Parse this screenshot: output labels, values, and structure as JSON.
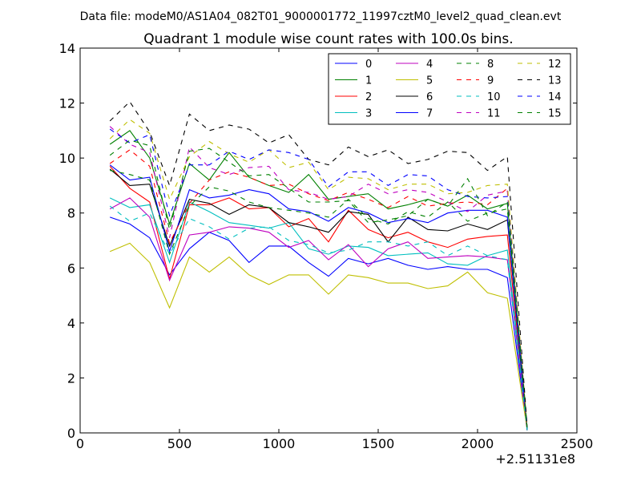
{
  "header": {
    "data_file_line": "Data file: modeM0/AS1A04_082T01_9000001772_11997cztM0_level2_quad_clean.evt"
  },
  "chart_data": {
    "type": "line",
    "title": "Quadrant 1 module wise count rates with 100.0s bins.",
    "xlabel": "",
    "ylabel": "",
    "xlim": [
      0,
      2500
    ],
    "ylim": [
      0,
      14
    ],
    "x_offset_label": "+2.51131e8",
    "x_ticks": [
      0,
      500,
      1000,
      1500,
      2000,
      2500
    ],
    "x_tick_labels": [
      "0",
      "500",
      "1000",
      "1500",
      "2000",
      "2500"
    ],
    "y_ticks": [
      0,
      2,
      4,
      6,
      8,
      10,
      12,
      14
    ],
    "y_tick_labels": [
      "0",
      "2",
      "4",
      "6",
      "8",
      "10",
      "12",
      "14"
    ],
    "grid": false,
    "legend_position": "top-right",
    "x": [
      150,
      250,
      350,
      450,
      550,
      650,
      750,
      850,
      950,
      1050,
      1150,
      1250,
      1350,
      1450,
      1550,
      1650,
      1750,
      1850,
      1950,
      2050,
      2150,
      2250
    ],
    "series": [
      {
        "name": "0",
        "color": "#0000ff",
        "dash": "solid",
        "values": [
          7.85,
          7.6,
          7.1,
          5.75,
          6.7,
          7.3,
          7.0,
          6.2,
          6.8,
          6.8,
          6.2,
          5.7,
          6.35,
          6.15,
          6.35,
          6.1,
          5.95,
          6.05,
          5.95,
          5.95,
          5.65,
          0.1
        ]
      },
      {
        "name": "1",
        "color": "#008000",
        "dash": "solid",
        "values": [
          10.5,
          11.0,
          10.0,
          7.6,
          9.8,
          9.2,
          10.2,
          9.3,
          9.0,
          8.75,
          9.4,
          8.5,
          8.6,
          8.7,
          8.15,
          8.3,
          8.5,
          8.25,
          8.65,
          8.15,
          8.35,
          0.15
        ]
      },
      {
        "name": "2",
        "color": "#ff0000",
        "dash": "solid",
        "values": [
          9.7,
          8.9,
          8.4,
          5.6,
          8.3,
          8.3,
          8.55,
          8.15,
          8.2,
          7.5,
          7.8,
          6.95,
          8.1,
          7.4,
          7.1,
          7.3,
          6.95,
          6.75,
          7.05,
          7.15,
          7.2,
          0.1
        ]
      },
      {
        "name": "3",
        "color": "#00bfbf",
        "dash": "solid",
        "values": [
          8.55,
          8.2,
          8.3,
          6.2,
          8.4,
          8.05,
          7.65,
          7.55,
          7.45,
          7.65,
          6.7,
          6.5,
          6.8,
          6.75,
          6.45,
          6.5,
          6.55,
          6.15,
          6.1,
          6.45,
          6.65,
          0.1
        ]
      },
      {
        "name": "4",
        "color": "#bf00bf",
        "dash": "solid",
        "values": [
          8.15,
          8.55,
          7.85,
          5.55,
          7.2,
          7.3,
          7.5,
          7.45,
          7.3,
          6.75,
          7.0,
          6.3,
          6.85,
          6.05,
          6.7,
          6.95,
          6.35,
          6.4,
          6.45,
          6.4,
          6.3,
          0.1
        ]
      },
      {
        "name": "5",
        "color": "#bfbf00",
        "dash": "solid",
        "values": [
          6.6,
          6.9,
          6.2,
          4.55,
          6.4,
          5.85,
          6.4,
          5.75,
          5.4,
          5.75,
          5.75,
          5.05,
          5.75,
          5.65,
          5.45,
          5.45,
          5.25,
          5.35,
          5.85,
          5.1,
          4.9,
          0.1
        ]
      },
      {
        "name": "6",
        "color": "#000000",
        "dash": "solid",
        "values": [
          9.6,
          9.0,
          9.05,
          6.8,
          8.5,
          8.35,
          7.95,
          8.3,
          8.2,
          7.65,
          7.5,
          7.3,
          8.05,
          7.95,
          6.95,
          7.85,
          7.4,
          7.35,
          7.6,
          7.4,
          7.75,
          0.1
        ]
      },
      {
        "name": "7",
        "color": "#0000ff",
        "dash": "solid",
        "values": [
          9.75,
          9.2,
          9.3,
          6.6,
          8.85,
          8.55,
          8.65,
          8.85,
          8.7,
          8.15,
          8.05,
          7.7,
          8.2,
          8.0,
          7.65,
          7.8,
          7.65,
          8.0,
          8.1,
          8.1,
          7.85,
          0.1
        ]
      },
      {
        "name": "8",
        "color": "#008000",
        "dash": "dashed",
        "values": [
          9.55,
          9.4,
          9.2,
          6.5,
          8.25,
          8.95,
          8.8,
          8.4,
          8.2,
          8.1,
          8.0,
          7.85,
          8.5,
          7.8,
          7.6,
          8.05,
          7.85,
          8.4,
          7.7,
          8.0,
          8.15,
          0.15
        ]
      },
      {
        "name": "9",
        "color": "#ff0000",
        "dash": "dashed",
        "values": [
          9.8,
          10.3,
          9.7,
          6.9,
          8.35,
          9.2,
          9.5,
          9.3,
          9.0,
          9.05,
          8.7,
          8.45,
          8.75,
          8.5,
          8.2,
          8.6,
          8.25,
          8.35,
          8.4,
          8.3,
          8.9,
          0.15
        ]
      },
      {
        "name": "10",
        "color": "#00bfbf",
        "dash": "dashed",
        "values": [
          8.25,
          7.7,
          8.0,
          6.5,
          7.8,
          7.5,
          7.05,
          7.45,
          7.5,
          7.0,
          6.85,
          6.55,
          6.65,
          6.95,
          6.95,
          6.8,
          6.95,
          6.45,
          6.8,
          6.45,
          6.3,
          0.1
        ]
      },
      {
        "name": "11",
        "color": "#bf00bf",
        "dash": "dashed",
        "values": [
          11.15,
          10.5,
          10.2,
          7.1,
          10.4,
          9.65,
          9.4,
          9.65,
          9.7,
          8.85,
          8.75,
          8.5,
          8.6,
          9.05,
          8.7,
          8.85,
          8.75,
          8.4,
          8.05,
          8.65,
          8.8,
          0.15
        ]
      },
      {
        "name": "12",
        "color": "#bfbf00",
        "dash": "dashed",
        "values": [
          10.7,
          11.4,
          10.9,
          8.5,
          10.05,
          10.6,
          10.15,
          9.85,
          10.3,
          9.65,
          9.85,
          8.85,
          9.3,
          9.25,
          8.85,
          9.05,
          9.05,
          8.7,
          8.75,
          9.0,
          9.05,
          0.15
        ]
      },
      {
        "name": "13",
        "color": "#000000",
        "dash": "dashed",
        "values": [
          11.35,
          12.05,
          10.95,
          9.0,
          11.6,
          11.0,
          11.2,
          11.05,
          10.55,
          10.85,
          9.95,
          9.75,
          10.4,
          10.05,
          10.3,
          9.8,
          9.95,
          10.25,
          10.2,
          9.55,
          10.05,
          0.2
        ]
      },
      {
        "name": "14",
        "color": "#0000ff",
        "dash": "dashed",
        "values": [
          11.05,
          10.55,
          10.85,
          7.9,
          9.75,
          9.75,
          10.25,
          9.95,
          10.3,
          10.2,
          9.95,
          8.95,
          9.5,
          9.5,
          9.0,
          9.4,
          9.35,
          8.85,
          8.6,
          8.55,
          8.6,
          0.15
        ]
      },
      {
        "name": "15",
        "color": "#008000",
        "dash": "dashed",
        "values": [
          10.1,
          10.65,
          10.45,
          7.4,
          10.25,
          10.35,
          9.85,
          9.35,
          9.4,
          8.9,
          8.4,
          8.4,
          8.45,
          7.65,
          7.75,
          7.9,
          8.5,
          8.25,
          9.25,
          7.9,
          8.4,
          0.15
        ]
      }
    ]
  }
}
